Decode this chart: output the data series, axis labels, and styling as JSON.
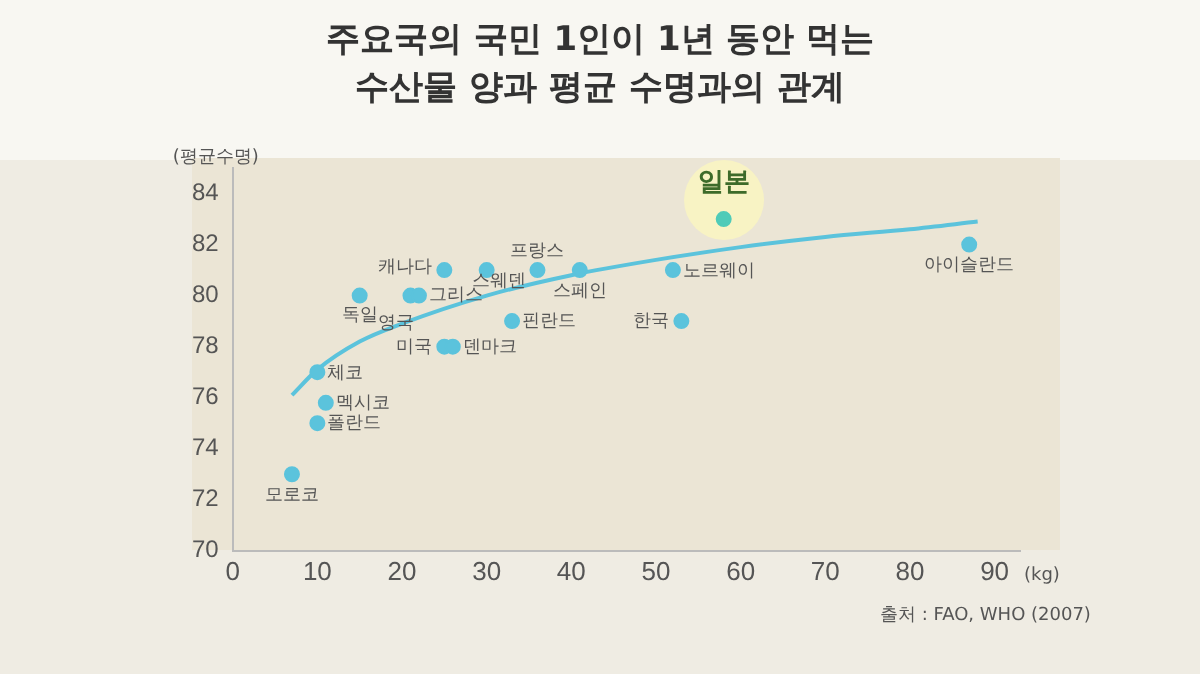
{
  "chart_data": {
    "type": "scatter",
    "title": "주요국의 국민 1인이 1년 동안 먹는\n수산물 양과 평균 수명과의 관계",
    "ylabel": "(평균수명)",
    "xlabel": "(kg)",
    "xlim": [
      0,
      93
    ],
    "xticks": [
      0,
      10,
      20,
      30,
      40,
      50,
      60,
      70,
      80,
      90
    ],
    "ylim": [
      70,
      85
    ],
    "yticks": [
      70,
      72,
      74,
      76,
      78,
      80,
      82,
      84
    ],
    "grid": false,
    "legend": false,
    "series": [
      {
        "marker": "circle",
        "colors": [
          "#5bc3dc",
          "#5bc3dc",
          "#5bc3dc",
          "#5bc3dc",
          "#5bc3dc",
          "#5bc3dc",
          "#5bc3dc",
          "#5bc3dc",
          "#5bc3dc",
          "#5bc3dc",
          "#5bc3dc",
          "#5bc3dc",
          "#5bc3dc",
          "#5bc3dc",
          "#5bc3dc",
          "#5bc3dc",
          "#4fcbb8",
          "#5bc3dc"
        ],
        "x": [
          7,
          10,
          11,
          10,
          15,
          21,
          22,
          25,
          25,
          26,
          30,
          36,
          41,
          33,
          52,
          53,
          58,
          87
        ],
        "values": [
          73,
          75,
          75.8,
          77,
          80,
          80,
          80,
          81,
          78,
          78,
          81,
          81,
          81,
          79,
          81,
          79,
          83,
          82
        ]
      },
      {
        "type": "line",
        "color": "#5bc3dc",
        "x": [
          7,
          10,
          15,
          20,
          30,
          40,
          50,
          60,
          70,
          80,
          88
        ],
        "values": [
          76.1,
          77.1,
          78.2,
          78.9,
          80.0,
          80.8,
          81.4,
          81.9,
          82.3,
          82.6,
          82.9
        ]
      }
    ],
    "annotations": [
      {
        "text": "모로코",
        "x": 7,
        "y": 73
      },
      {
        "text": "폴란드",
        "x": 10,
        "y": 75
      },
      {
        "text": "멕시코",
        "x": 11,
        "y": 75.8
      },
      {
        "text": "체코",
        "x": 10,
        "y": 77
      },
      {
        "text": "독일",
        "x": 15,
        "y": 80
      },
      {
        "text": "영국",
        "x": 21,
        "y": 80
      },
      {
        "text": "그리스",
        "x": 22,
        "y": 80
      },
      {
        "text": "캐나다",
        "x": 25,
        "y": 81
      },
      {
        "text": "미국",
        "x": 25,
        "y": 78
      },
      {
        "text": "덴마크",
        "x": 26,
        "y": 78
      },
      {
        "text": "스웨덴",
        "x": 30,
        "y": 81
      },
      {
        "text": "프랑스",
        "x": 36,
        "y": 81
      },
      {
        "text": "스페인",
        "x": 41,
        "y": 81
      },
      {
        "text": "핀란드",
        "x": 33,
        "y": 79
      },
      {
        "text": "노르웨이",
        "x": 52,
        "y": 81
      },
      {
        "text": "한국",
        "x": 53,
        "y": 79
      },
      {
        "text": "일본",
        "x": 58,
        "y": 83
      },
      {
        "text": "아이슬란드",
        "x": 87,
        "y": 82
      },
      "출처 : FAO, WHO (2007)"
    ]
  }
}
